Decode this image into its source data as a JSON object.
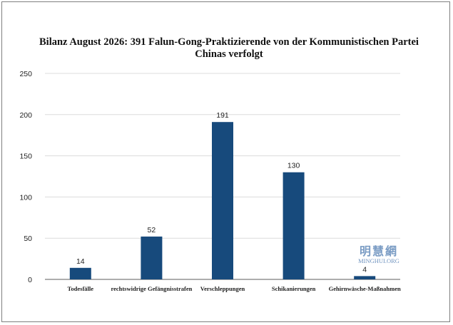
{
  "chart_data": {
    "type": "bar",
    "title_line1": "Bilanz August 2026: 391 Falun-Gong-Praktizierende von der Kommunistischen Partei",
    "title_line2": "Chinas verfolgt",
    "categories": [
      "Todesfälle",
      "rechtswidrige Gefängnisstrafen",
      "Verschleppungen",
      "Schikanierungen",
      "Gehirnwäsche-Maßnahmen"
    ],
    "values": [
      14,
      52,
      191,
      130,
      4
    ],
    "ylim": [
      0,
      250
    ],
    "yticks": [
      0,
      50,
      100,
      150,
      200,
      250
    ],
    "grid": true,
    "bar_color": "#174a7c",
    "xlabel": "",
    "ylabel": ""
  },
  "watermark": {
    "chinese": "明慧網",
    "english": "MINGHUI.ORG",
    "color": "#7a9cc4"
  }
}
